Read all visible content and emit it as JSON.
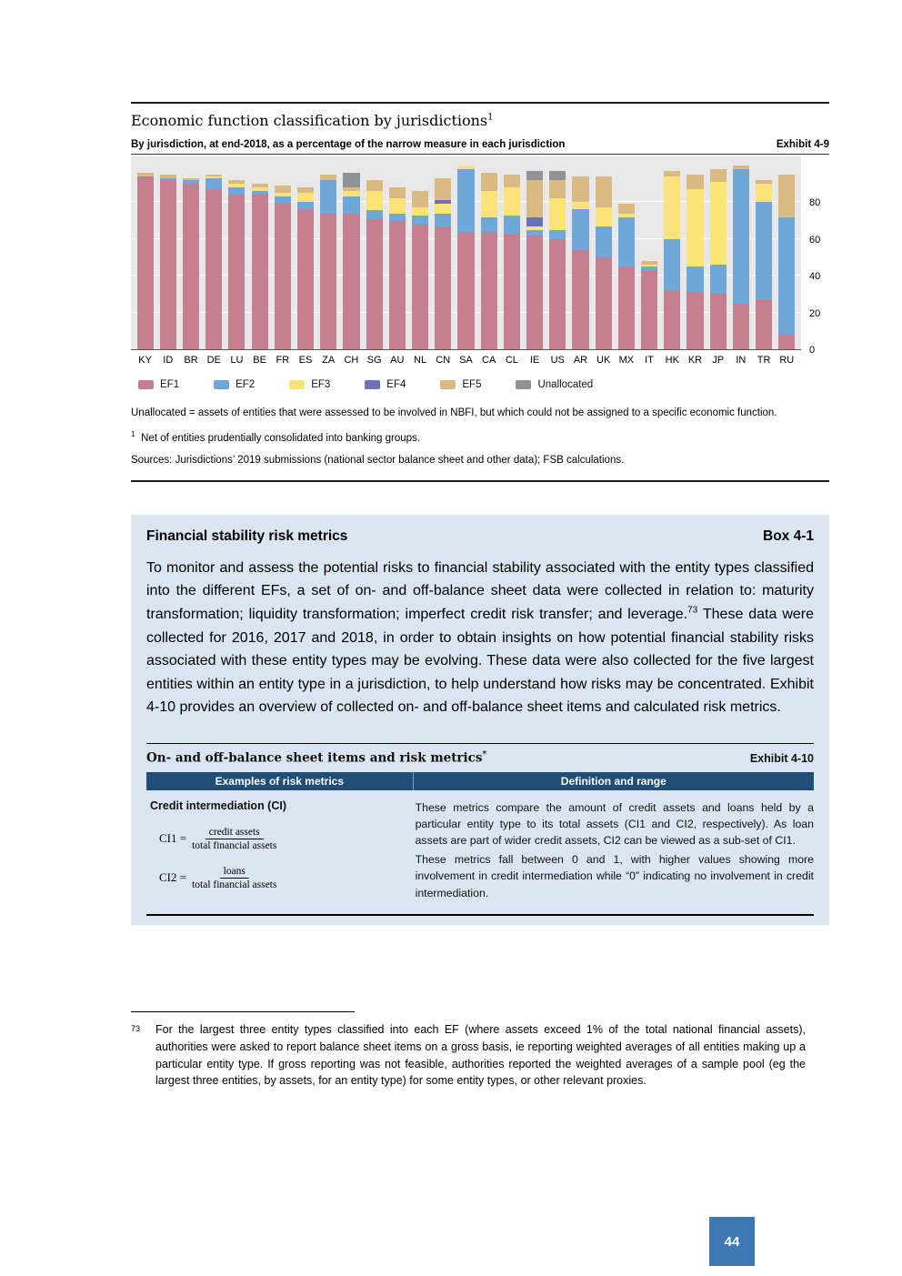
{
  "exhibit49": {
    "title": "Economic function classification by jurisdictions",
    "title_marker": "1",
    "subtitle": "By jurisdiction, at end-2018, as a percentage of the narrow measure in each jurisdiction",
    "label": "Exhibit 4-9"
  },
  "chart_data": {
    "type": "bar",
    "subtype": "stacked-bar",
    "title": "Economic function classification by jurisdictions",
    "subtitle": "By jurisdiction, at end-2018, as a percentage of the narrow measure in each jurisdiction",
    "xlabel": "",
    "ylabel": "",
    "ylim": [
      0,
      100
    ],
    "yticks": [
      0,
      20,
      40,
      60,
      80
    ],
    "legend_position": "bottom",
    "grid": true,
    "categories": [
      "KY",
      "ID",
      "BR",
      "DE",
      "LU",
      "BE",
      "FR",
      "ES",
      "ZA",
      "CH",
      "SG",
      "AU",
      "NL",
      "CN",
      "SA",
      "CA",
      "CL",
      "IE",
      "US",
      "AR",
      "UK",
      "MX",
      "IT",
      "HK",
      "KR",
      "JP",
      "IN",
      "TR",
      "RU"
    ],
    "series": [
      {
        "name": "EF1",
        "color": "#c57f91",
        "values": [
          94,
          92,
          90,
          87,
          84,
          84,
          79,
          76,
          74,
          74,
          71,
          70,
          68,
          67,
          64,
          64,
          63,
          62,
          60,
          54,
          50,
          45,
          43,
          32,
          31,
          30,
          25,
          27,
          8
        ]
      },
      {
        "name": "EF2",
        "color": "#6fa7d9",
        "values": [
          0,
          1,
          2,
          6,
          4,
          2,
          4,
          4,
          18,
          9,
          5,
          4,
          5,
          7,
          34,
          8,
          10,
          3,
          5,
          22,
          17,
          27,
          2,
          28,
          14,
          16,
          73,
          53,
          64
        ]
      },
      {
        "name": "EF3",
        "color": "#fbe378",
        "values": [
          0,
          0,
          0,
          1,
          2,
          2,
          2,
          5,
          0,
          3,
          10,
          8,
          4,
          5,
          2,
          14,
          15,
          2,
          17,
          4,
          10,
          2,
          1,
          34,
          42,
          45,
          0,
          10,
          0
        ]
      },
      {
        "name": "EF4",
        "color": "#6b72b5",
        "values": [
          0,
          0,
          0,
          0,
          0,
          0,
          0,
          0,
          0,
          0,
          0,
          0,
          0,
          2,
          0,
          0,
          0,
          5,
          0,
          0,
          0,
          0,
          0,
          0,
          0,
          0,
          0,
          0,
          0
        ]
      },
      {
        "name": "EF5",
        "color": "#d8ba82",
        "values": [
          2,
          2,
          1,
          1,
          2,
          2,
          4,
          3,
          3,
          2,
          6,
          6,
          9,
          12,
          0,
          10,
          7,
          20,
          10,
          14,
          17,
          5,
          2,
          3,
          8,
          7,
          2,
          2,
          23
        ]
      },
      {
        "name": "Unallocated",
        "color": "#8f9396",
        "values": [
          0,
          0,
          0,
          0,
          0,
          0,
          0,
          0,
          0,
          8,
          0,
          0,
          0,
          0,
          0,
          0,
          0,
          5,
          5,
          0,
          0,
          0,
          0,
          0,
          0,
          0,
          0,
          0,
          0
        ]
      }
    ]
  },
  "notes": {
    "unallocated": "Unallocated = assets of entities that were assessed to be involved in NBFI, but which could not be assigned to a specific economic function.",
    "fn1_marker": "1",
    "fn1": "Net of entities prudentially consolidated into banking groups.",
    "sources": "Sources: Jurisdictions’ 2019 submissions (national sector balance sheet and other data); FSB calculations."
  },
  "box": {
    "title": "Financial stability risk metrics",
    "label": "Box 4-1",
    "body_1": "To monitor and assess the potential risks to financial stability associated with the entity types classified into the different EFs, a set of on- and off-balance sheet data were collected in relation to: maturity transformation; liquidity transformation; imperfect credit risk transfer; and leverage.",
    "body_marker": "73",
    "body_2": " These data were collected for 2016, 2017 and 2018, in order to obtain insights on how potential financial stability risks associated with these entity types may be evolving. These data were also collected for the five largest entities within an entity type in a jurisdiction, to help understand how risks may be concentrated. Exhibit 4-10 provides an overview of collected on- and off-balance sheet items and calculated risk metrics."
  },
  "ex410": {
    "title": "On- and off-balance sheet items and risk metrics",
    "title_marker": "*",
    "label": "Exhibit 4-10",
    "col1_header": "Examples of risk metrics",
    "col2_header": "Definition and range",
    "metric_heading": "Credit intermediation (CI)",
    "ci1_label": "CI1 =",
    "ci1_num": "credit assets",
    "ci1_den": "total financial assets",
    "ci2_label": "CI2 =",
    "ci2_num": "loans",
    "ci2_den": "total financial assets",
    "def_p1": "These metrics compare the amount of credit assets and loans held by a particular entity type to its total assets (CI1 and CI2, respectively). As loan assets are part of wider credit assets, CI2 can be viewed as a sub-set of CI1.",
    "def_p2": "These metrics fall between 0 and 1, with higher values showing more involvement in credit intermediation while “0” indicating no involvement in credit intermediation."
  },
  "footnote73": {
    "marker": "73",
    "text": "For the largest three entity types classified into each EF (where assets exceed 1% of the total national financial assets), authorities were asked to report balance sheet items on a gross basis, ie reporting weighted averages of all entities making up a particular entity type. If gross reporting was not feasible, authorities reported the weighted averages of a sample pool (eg the largest three entities, by assets, for an entity type) for some entity types, or other relevant proxies."
  },
  "page_number": "44"
}
